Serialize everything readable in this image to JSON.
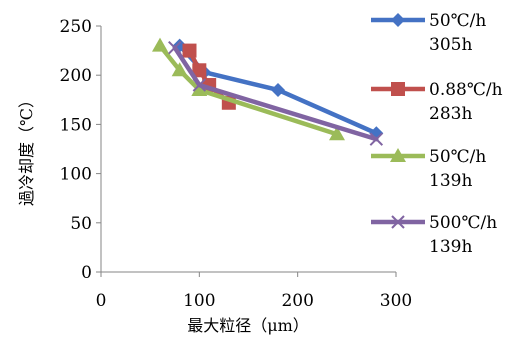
{
  "chart_data": {
    "type": "line",
    "xlabel": "最大粒径（μm）",
    "ylabel": "過冷却度（℃）",
    "xlim": [
      0,
      300
    ],
    "ylim": [
      0,
      250
    ],
    "x_ticks": [
      "0",
      "100",
      "200",
      "300"
    ],
    "y_ticks": [
      "0",
      "50",
      "100",
      "150",
      "200",
      "250"
    ],
    "grid": false,
    "legend_position": "right",
    "series": [
      {
        "name_line1": "50℃/h",
        "name_line2": "305h",
        "color": "#4472C4",
        "marker": "diamond",
        "points": [
          [
            80,
            230
          ],
          [
            105,
            203
          ],
          [
            180,
            185
          ],
          [
            280,
            141
          ]
        ]
      },
      {
        "name_line1": "0.88℃/h",
        "name_line2": "283h",
        "color": "#C0504D",
        "marker": "square",
        "points": [
          [
            90,
            225
          ],
          [
            100,
            205
          ],
          [
            110,
            190
          ],
          [
            130,
            172
          ]
        ]
      },
      {
        "name_line1": "50℃/h",
        "name_line2": "139h",
        "color": "#9BBB59",
        "marker": "triangle",
        "points": [
          [
            60,
            230
          ],
          [
            80,
            205
          ],
          [
            100,
            185
          ],
          [
            240,
            140
          ]
        ]
      },
      {
        "name_line1": "500℃/h",
        "name_line2": "139h",
        "color": "#8064A2",
        "marker": "x",
        "points": [
          [
            75,
            228
          ],
          [
            100,
            190
          ],
          [
            280,
            135
          ]
        ]
      }
    ]
  }
}
